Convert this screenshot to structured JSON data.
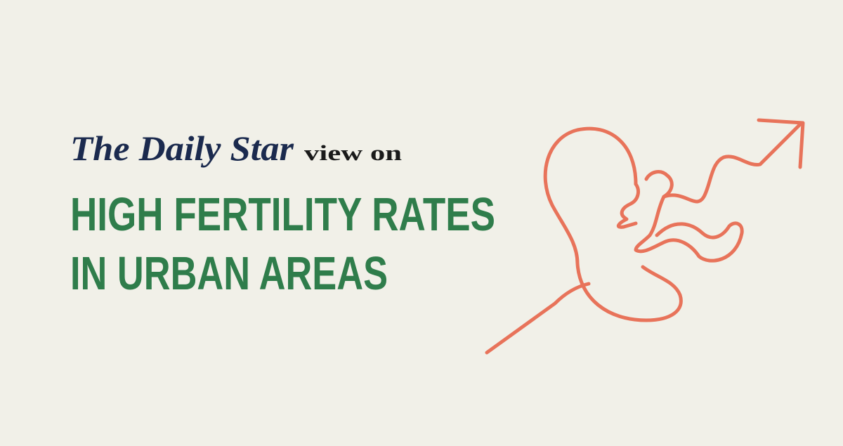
{
  "brand": "The Daily Star",
  "tagline": "view on",
  "headline": [
    "HIGH FERTILITY RATES",
    "IN URBAN AREAS"
  ]
}
